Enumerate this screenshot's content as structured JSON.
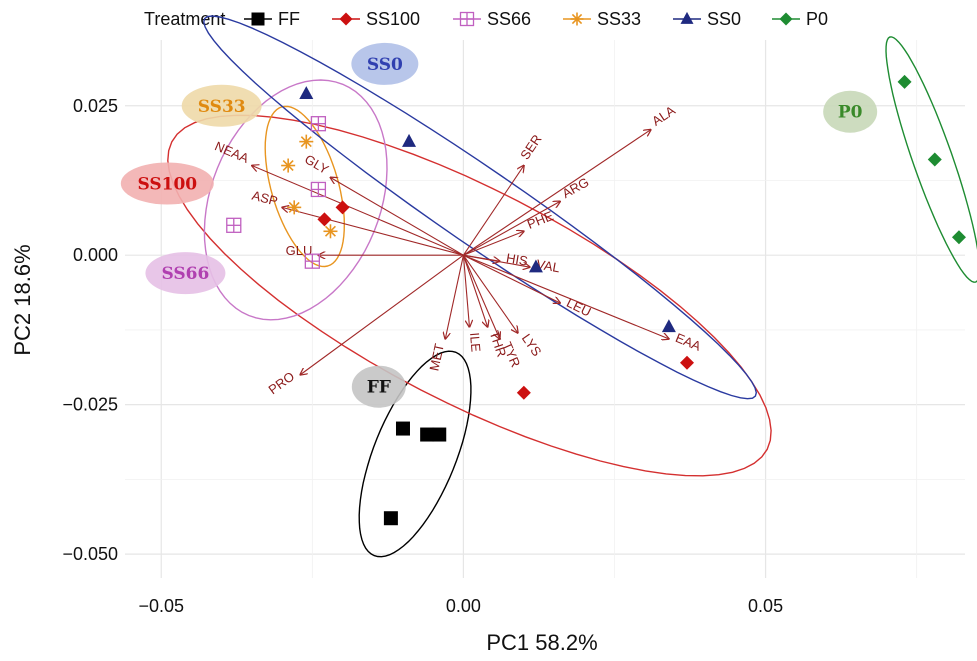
{
  "chart_data": {
    "type": "scatter",
    "xlabel": "PC1 58.2%",
    "ylabel": "PC2 18.6%",
    "xlim": [
      -0.056,
      0.083
    ],
    "ylim": [
      -0.054,
      0.036
    ],
    "x_ticks": [
      -0.05,
      0.0,
      0.05
    ],
    "x_tick_labels": [
      "−0.05",
      "0.00",
      "0.05"
    ],
    "y_ticks": [
      0.025,
      0.0,
      -0.025,
      -0.05
    ],
    "y_tick_labels": [
      "0.025",
      "0.000",
      "−0.025",
      "−0.050"
    ],
    "grid": true,
    "legend": {
      "title": "Treatment",
      "position": "top",
      "entries": [
        {
          "name": "FF",
          "color": "#000000",
          "marker": "square"
        },
        {
          "name": "SS100",
          "color": "#cc1010",
          "marker": "diamond"
        },
        {
          "name": "SS66",
          "color": "#c060c0",
          "marker": "boxplus"
        },
        {
          "name": "SS33",
          "color": "#e89520",
          "marker": "asterisk"
        },
        {
          "name": "SS0",
          "color": "#1f2a80",
          "marker": "triangle"
        },
        {
          "name": "P0",
          "color": "#1e8c32",
          "marker": "diamond"
        }
      ]
    },
    "series": [
      {
        "name": "FF",
        "color": "#000000",
        "ellipse_color": "#000000",
        "marker": "square",
        "points": [
          [
            -0.01,
            -0.029
          ],
          [
            -0.006,
            -0.03
          ],
          [
            -0.004,
            -0.03
          ],
          [
            -0.012,
            -0.044
          ]
        ]
      },
      {
        "name": "SS100",
        "color": "#cc1010",
        "ellipse_color": "#d43030",
        "marker": "diamond",
        "points": [
          [
            -0.02,
            0.008
          ],
          [
            -0.023,
            0.006
          ],
          [
            0.01,
            -0.023
          ],
          [
            0.037,
            -0.018
          ]
        ]
      },
      {
        "name": "SS66",
        "color": "#c060c0",
        "ellipse_color": "#c878c8",
        "marker": "boxplus",
        "points": [
          [
            -0.024,
            0.022
          ],
          [
            -0.024,
            0.011
          ],
          [
            -0.038,
            0.005
          ],
          [
            -0.025,
            -0.001
          ]
        ]
      },
      {
        "name": "SS33",
        "color": "#e89520",
        "ellipse_color": "#e89520",
        "marker": "asterisk",
        "points": [
          [
            -0.026,
            0.019
          ],
          [
            -0.029,
            0.015
          ],
          [
            -0.028,
            0.008
          ],
          [
            -0.022,
            0.004
          ]
        ]
      },
      {
        "name": "SS0",
        "color": "#1f2a80",
        "ellipse_color": "#2a3aa0",
        "marker": "triangle",
        "points": [
          [
            -0.026,
            0.027
          ],
          [
            -0.009,
            0.019
          ],
          [
            0.012,
            -0.002
          ],
          [
            0.034,
            -0.012
          ]
        ]
      },
      {
        "name": "P0",
        "color": "#1e8c32",
        "ellipse_color": "#1e8c32",
        "marker": "diamond",
        "points": [
          [
            0.073,
            0.029
          ],
          [
            0.078,
            0.016
          ],
          [
            0.082,
            0.003
          ]
        ]
      }
    ],
    "loadings": [
      {
        "label": "ALA",
        "x": 0.031,
        "y": 0.021
      },
      {
        "label": "SER",
        "x": 0.01,
        "y": 0.015
      },
      {
        "label": "ARG",
        "x": 0.016,
        "y": 0.009
      },
      {
        "label": "PHE",
        "x": 0.01,
        "y": 0.004
      },
      {
        "label": "HIS",
        "x": 0.006,
        "y": -0.001
      },
      {
        "label": "VAL",
        "x": 0.011,
        "y": -0.002
      },
      {
        "label": "LEU",
        "x": 0.016,
        "y": -0.008
      },
      {
        "label": "EAA",
        "x": 0.034,
        "y": -0.014
      },
      {
        "label": "LYS",
        "x": 0.009,
        "y": -0.013
      },
      {
        "label": "TYR",
        "x": 0.006,
        "y": -0.014
      },
      {
        "label": "THR",
        "x": 0.004,
        "y": -0.012
      },
      {
        "label": "ILE",
        "x": 0.001,
        "y": -0.012
      },
      {
        "label": "MET",
        "x": -0.003,
        "y": -0.014
      },
      {
        "label": "PRO",
        "x": -0.027,
        "y": -0.02
      },
      {
        "label": "GLU",
        "x": -0.024,
        "y": 0.0
      },
      {
        "label": "ASP",
        "x": -0.03,
        "y": 0.008
      },
      {
        "label": "NEAA",
        "x": -0.035,
        "y": 0.015
      },
      {
        "label": "GLY",
        "x": -0.022,
        "y": 0.013
      }
    ],
    "group_badges": [
      {
        "label": "SS0",
        "x": -0.013,
        "y": 0.032,
        "fill": "#b0c0e8",
        "text_color": "#3040b0"
      },
      {
        "label": "SS33",
        "x": -0.04,
        "y": 0.025,
        "fill": "#eed9a8",
        "text_color": "#e08a10"
      },
      {
        "label": "SS100",
        "x": -0.049,
        "y": 0.012,
        "fill": "#f2b0b0",
        "text_color": "#cc1010"
      },
      {
        "label": "SS66",
        "x": -0.046,
        "y": -0.003,
        "fill": "#e6c0e6",
        "text_color": "#b040b0"
      },
      {
        "label": "FF",
        "x": -0.014,
        "y": -0.022,
        "fill": "#c4c4c4",
        "text_color": "#111111"
      },
      {
        "label": "P0",
        "x": 0.064,
        "y": 0.024,
        "fill": "#c8d8b8",
        "text_color": "#3a8a2a"
      }
    ],
    "colors": {
      "loading_arrow": "#a02828",
      "loading_text": "#8b1a1a",
      "grid": "#e6e6e6"
    }
  }
}
